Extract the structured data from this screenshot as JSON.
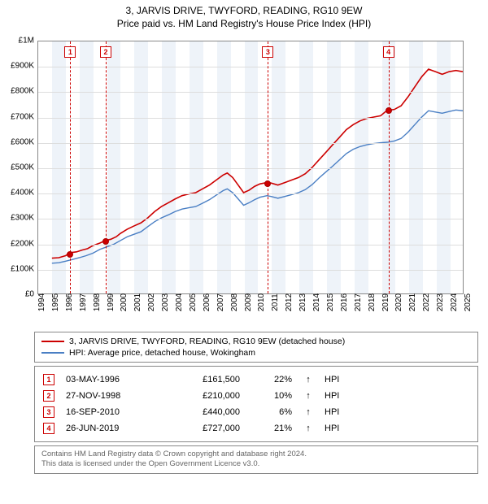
{
  "title_line1": "3, JARVIS DRIVE, TWYFORD, READING, RG10 9EW",
  "title_line2": "Price paid vs. HM Land Registry's House Price Index (HPI)",
  "chart": {
    "type": "line",
    "background_color": "#ffffff",
    "grid_color": "#dddddd",
    "plot_border_color": "#888888",
    "ylim": [
      0,
      1000000
    ],
    "ytick_step": 100000,
    "yticks_labels": [
      "£0",
      "£100K",
      "£200K",
      "£300K",
      "£400K",
      "£500K",
      "£600K",
      "£700K",
      "£800K",
      "£900K",
      "£1M"
    ],
    "xlim": [
      1994,
      2025
    ],
    "xticks": [
      1994,
      1995,
      1996,
      1997,
      1998,
      1999,
      2000,
      2001,
      2002,
      2003,
      2004,
      2005,
      2006,
      2007,
      2008,
      2009,
      2010,
      2011,
      2012,
      2013,
      2014,
      2015,
      2016,
      2017,
      2018,
      2019,
      2020,
      2021,
      2022,
      2023,
      2024,
      2025
    ],
    "vband_color": "#eef3f9",
    "vdash_color": "#cc0000",
    "label_fontsize": 10,
    "series": [
      {
        "name": "3, JARVIS DRIVE, TWYFORD, READING, RG10 9EW (detached house)",
        "color": "#cc0000",
        "line_width": 1.6,
        "points": [
          [
            1995.0,
            140000
          ],
          [
            1995.5,
            142000
          ],
          [
            1996.0,
            150000
          ],
          [
            1996.3,
            161500
          ],
          [
            1996.8,
            165000
          ],
          [
            1997.2,
            172000
          ],
          [
            1997.6,
            178000
          ],
          [
            1998.0,
            190000
          ],
          [
            1998.5,
            200000
          ],
          [
            1998.9,
            210000
          ],
          [
            1999.3,
            215000
          ],
          [
            1999.7,
            225000
          ],
          [
            2000.0,
            238000
          ],
          [
            2000.5,
            255000
          ],
          [
            2001.0,
            268000
          ],
          [
            2001.5,
            280000
          ],
          [
            2002.0,
            300000
          ],
          [
            2002.5,
            325000
          ],
          [
            2003.0,
            345000
          ],
          [
            2003.5,
            360000
          ],
          [
            2004.0,
            375000
          ],
          [
            2004.5,
            388000
          ],
          [
            2005.0,
            395000
          ],
          [
            2005.5,
            400000
          ],
          [
            2006.0,
            415000
          ],
          [
            2006.5,
            430000
          ],
          [
            2007.0,
            450000
          ],
          [
            2007.5,
            470000
          ],
          [
            2007.8,
            478000
          ],
          [
            2008.2,
            460000
          ],
          [
            2008.6,
            430000
          ],
          [
            2009.0,
            400000
          ],
          [
            2009.4,
            410000
          ],
          [
            2009.8,
            425000
          ],
          [
            2010.2,
            435000
          ],
          [
            2010.7,
            440000
          ],
          [
            2011.0,
            438000
          ],
          [
            2011.5,
            430000
          ],
          [
            2012.0,
            440000
          ],
          [
            2012.5,
            450000
          ],
          [
            2013.0,
            460000
          ],
          [
            2013.5,
            475000
          ],
          [
            2014.0,
            500000
          ],
          [
            2014.5,
            530000
          ],
          [
            2015.0,
            560000
          ],
          [
            2015.5,
            590000
          ],
          [
            2016.0,
            620000
          ],
          [
            2016.5,
            650000
          ],
          [
            2017.0,
            670000
          ],
          [
            2017.5,
            685000
          ],
          [
            2018.0,
            695000
          ],
          [
            2018.5,
            700000
          ],
          [
            2019.0,
            705000
          ],
          [
            2019.48,
            727000
          ],
          [
            2019.5,
            727000
          ],
          [
            2020.0,
            730000
          ],
          [
            2020.5,
            745000
          ],
          [
            2021.0,
            780000
          ],
          [
            2021.5,
            820000
          ],
          [
            2022.0,
            860000
          ],
          [
            2022.5,
            890000
          ],
          [
            2023.0,
            880000
          ],
          [
            2023.5,
            870000
          ],
          [
            2024.0,
            880000
          ],
          [
            2024.5,
            885000
          ],
          [
            2025.0,
            880000
          ]
        ]
      },
      {
        "name": "HPI: Average price, detached house, Wokingham",
        "color": "#4a7fc4",
        "line_width": 1.4,
        "points": [
          [
            1995.0,
            120000
          ],
          [
            1995.5,
            122000
          ],
          [
            1996.0,
            128000
          ],
          [
            1996.5,
            135000
          ],
          [
            1997.0,
            142000
          ],
          [
            1997.5,
            150000
          ],
          [
            1998.0,
            160000
          ],
          [
            1998.5,
            175000
          ],
          [
            1999.0,
            185000
          ],
          [
            1999.5,
            195000
          ],
          [
            2000.0,
            210000
          ],
          [
            2000.5,
            225000
          ],
          [
            2001.0,
            235000
          ],
          [
            2001.5,
            245000
          ],
          [
            2002.0,
            265000
          ],
          [
            2002.5,
            285000
          ],
          [
            2003.0,
            300000
          ],
          [
            2003.5,
            312000
          ],
          [
            2004.0,
            325000
          ],
          [
            2004.5,
            335000
          ],
          [
            2005.0,
            340000
          ],
          [
            2005.5,
            345000
          ],
          [
            2006.0,
            358000
          ],
          [
            2006.5,
            372000
          ],
          [
            2007.0,
            390000
          ],
          [
            2007.5,
            408000
          ],
          [
            2007.8,
            415000
          ],
          [
            2008.2,
            400000
          ],
          [
            2008.6,
            375000
          ],
          [
            2009.0,
            350000
          ],
          [
            2009.4,
            360000
          ],
          [
            2009.8,
            372000
          ],
          [
            2010.2,
            382000
          ],
          [
            2010.7,
            388000
          ],
          [
            2011.0,
            385000
          ],
          [
            2011.5,
            378000
          ],
          [
            2012.0,
            385000
          ],
          [
            2012.5,
            392000
          ],
          [
            2013.0,
            400000
          ],
          [
            2013.5,
            412000
          ],
          [
            2014.0,
            432000
          ],
          [
            2014.5,
            458000
          ],
          [
            2015.0,
            482000
          ],
          [
            2015.5,
            505000
          ],
          [
            2016.0,
            530000
          ],
          [
            2016.5,
            555000
          ],
          [
            2017.0,
            572000
          ],
          [
            2017.5,
            583000
          ],
          [
            2018.0,
            590000
          ],
          [
            2018.5,
            595000
          ],
          [
            2019.0,
            598000
          ],
          [
            2019.5,
            600000
          ],
          [
            2020.0,
            605000
          ],
          [
            2020.5,
            615000
          ],
          [
            2021.0,
            640000
          ],
          [
            2021.5,
            670000
          ],
          [
            2022.0,
            700000
          ],
          [
            2022.5,
            725000
          ],
          [
            2023.0,
            720000
          ],
          [
            2023.5,
            715000
          ],
          [
            2024.0,
            722000
          ],
          [
            2024.5,
            728000
          ],
          [
            2025.0,
            725000
          ]
        ]
      }
    ],
    "sale_markers": [
      {
        "n": "1",
        "year": 1996.33,
        "price": 161500
      },
      {
        "n": "2",
        "year": 1998.91,
        "price": 210000
      },
      {
        "n": "3",
        "year": 2010.71,
        "price": 440000
      },
      {
        "n": "4",
        "year": 2019.48,
        "price": 727000
      }
    ],
    "marker_box_top_offset": 6
  },
  "legend": {
    "items": [
      {
        "color": "#cc0000",
        "label": "3, JARVIS DRIVE, TWYFORD, READING, RG10 9EW (detached house)"
      },
      {
        "color": "#4a7fc4",
        "label": "HPI: Average price, detached house, Wokingham"
      }
    ]
  },
  "sales": [
    {
      "n": "1",
      "date": "03-MAY-1996",
      "price": "£161,500",
      "pct": "22%",
      "arrow": "↑",
      "vs": "HPI"
    },
    {
      "n": "2",
      "date": "27-NOV-1998",
      "price": "£210,000",
      "pct": "10%",
      "arrow": "↑",
      "vs": "HPI"
    },
    {
      "n": "3",
      "date": "16-SEP-2010",
      "price": "£440,000",
      "pct": "6%",
      "arrow": "↑",
      "vs": "HPI"
    },
    {
      "n": "4",
      "date": "26-JUN-2019",
      "price": "£727,000",
      "pct": "21%",
      "arrow": "↑",
      "vs": "HPI"
    }
  ],
  "footer": {
    "line1": "Contains HM Land Registry data © Crown copyright and database right 2024.",
    "line2": "This data is licensed under the Open Government Licence v3.0."
  }
}
